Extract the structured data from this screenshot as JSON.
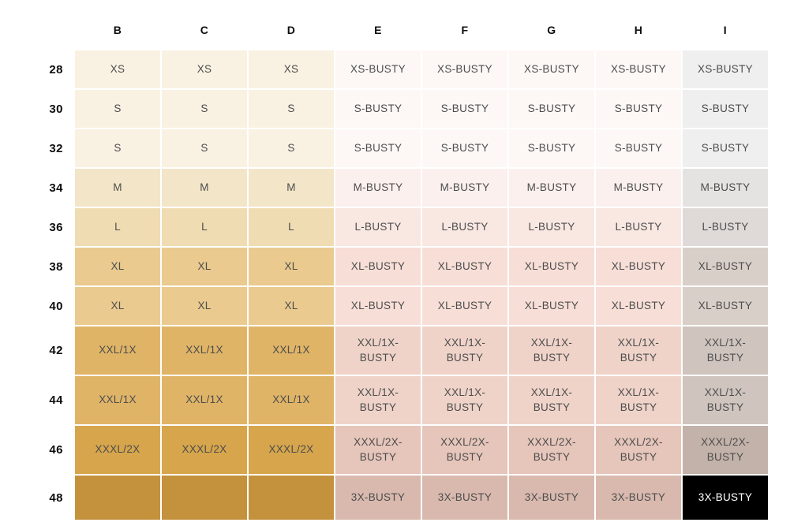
{
  "chart_data": {
    "type": "table",
    "column_headers": [
      "B",
      "C",
      "D",
      "E",
      "F",
      "G",
      "H",
      "I"
    ],
    "row_headers": [
      "28",
      "30",
      "32",
      "34",
      "36",
      "38",
      "40",
      "42",
      "44",
      "46",
      "48"
    ],
    "rows": [
      [
        "XS",
        "XS",
        "XS",
        "XS-BUSTY",
        "XS-BUSTY",
        "XS-BUSTY",
        "XS-BUSTY",
        "XS-BUSTY"
      ],
      [
        "S",
        "S",
        "S",
        "S-BUSTY",
        "S-BUSTY",
        "S-BUSTY",
        "S-BUSTY",
        "S-BUSTY"
      ],
      [
        "S",
        "S",
        "S",
        "S-BUSTY",
        "S-BUSTY",
        "S-BUSTY",
        "S-BUSTY",
        "S-BUSTY"
      ],
      [
        "M",
        "M",
        "M",
        "M-BUSTY",
        "M-BUSTY",
        "M-BUSTY",
        "M-BUSTY",
        "M-BUSTY"
      ],
      [
        "L",
        "L",
        "L",
        "L-BUSTY",
        "L-BUSTY",
        "L-BUSTY",
        "L-BUSTY",
        "L-BUSTY"
      ],
      [
        "XL",
        "XL",
        "XL",
        "XL-BUSTY",
        "XL-BUSTY",
        "XL-BUSTY",
        "XL-BUSTY",
        "XL-BUSTY"
      ],
      [
        "XL",
        "XL",
        "XL",
        "XL-BUSTY",
        "XL-BUSTY",
        "XL-BUSTY",
        "XL-BUSTY",
        "XL-BUSTY"
      ],
      [
        "XXL/1X",
        "XXL/1X",
        "XXL/1X",
        "XXL/1X-BUSTY",
        "XXL/1X-BUSTY",
        "XXL/1X-BUSTY",
        "XXL/1X-BUSTY",
        "XXL/1X-BUSTY"
      ],
      [
        "XXL/1X",
        "XXL/1X",
        "XXL/1X",
        "XXL/1X-BUSTY",
        "XXL/1X-BUSTY",
        "XXL/1X-BUSTY",
        "XXL/1X-BUSTY",
        "XXL/1X-BUSTY"
      ],
      [
        "XXXL/2X",
        "XXXL/2X",
        "XXXL/2X",
        "XXXL/2X-BUSTY",
        "XXXL/2X-BUSTY",
        "XXXL/2X-BUSTY",
        "XXXL/2X-BUSTY",
        "XXXL/2X-BUSTY"
      ],
      [
        "",
        "",
        "",
        "3X-BUSTY",
        "3X-BUSTY",
        "3X-BUSTY",
        "3X-BUSTY",
        "3X-BUSTY"
      ]
    ]
  },
  "colors": {
    "page_background": "#ffffff",
    "header_text": "#0d0d0d",
    "cell_text": "#4d4d4d",
    "highlight_cell_background": "#000000",
    "highlight_cell_text": "#ffffff",
    "columns_BCD_by_row": [
      "#f9f1e2",
      "#f9f1e2",
      "#f9f1e2",
      "#f3e5c8",
      "#f0dcb2",
      "#eaca8e",
      "#eaca8e",
      "#e0b467",
      "#e0b467",
      "#d6a54c",
      "#c4913c"
    ],
    "columns_EFGH_by_row": [
      "#fdf8f6",
      "#fdf8f6",
      "#fdf8f6",
      "#fbf0ed",
      "#f9e7e2",
      "#f7ded7",
      "#f7ded7",
      "#efd3c9",
      "#efd3c9",
      "#e6c5ba",
      "#d9b9ae"
    ],
    "column_I_by_row": [
      "#efeff0",
      "#efeff0",
      "#efeff0",
      "#e5e3e2",
      "#dfdad7",
      "#d9cfc9",
      "#d9cfc9",
      "#cfc4be",
      "#cfc4be",
      "#c3b2a9",
      "#000000"
    ]
  }
}
